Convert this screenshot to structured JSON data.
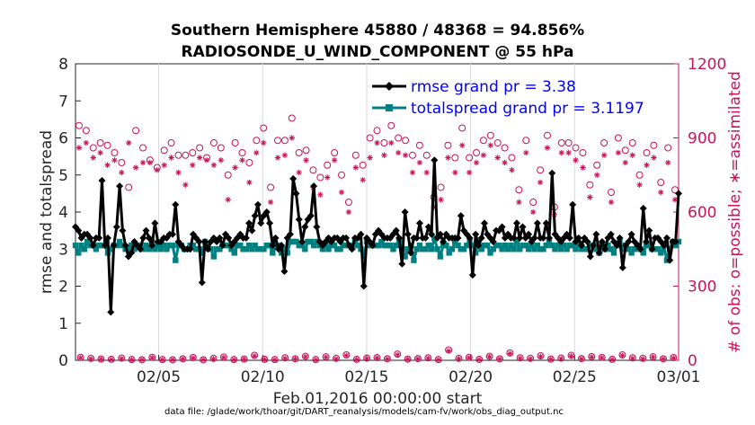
{
  "chart_data": {
    "type": "line",
    "title": "Southern Hemisphere 45880 / 48368 = 94.856%",
    "subtitle": "RADIOSONDE_U_WIND_COMPONENT @ 55 hPa",
    "xlabel": "Feb.01,2016 00:00:00 start",
    "ylabel": "rmse and totalspread",
    "ylabel_right": "# of obs: o=possible; ∗=assimilated",
    "footer": "data file: /glade/work/thoar/git/DART_reanalysis/models/cam-fv/work/obs_diag_output.nc",
    "x_ticks": [
      "02/05",
      "02/10",
      "02/15",
      "02/20",
      "02/25",
      "03/01"
    ],
    "y_ticks": [
      "0",
      "1",
      "2",
      "3",
      "4",
      "5",
      "6",
      "7",
      "8"
    ],
    "y2_ticks": [
      "0",
      "300",
      "600",
      "900",
      "1200"
    ],
    "xlim_days": [
      1,
      30
    ],
    "ylim": [
      0,
      8
    ],
    "y2lim": [
      0,
      1200
    ],
    "legend_position": "top-right",
    "colors": {
      "rmse": "#000000",
      "totalspread": "#008080",
      "obs": "#c8145a",
      "legend_text": "#0000ff"
    },
    "series": [
      {
        "name": "rmse grand pr = 3.38",
        "values": [
          3.6,
          3.5,
          3.3,
          3.4,
          3.4,
          3.3,
          3.1,
          3.3,
          3.3,
          4.85,
          3.1,
          3.3,
          1.3,
          3.1,
          3.6,
          4.7,
          3.5,
          3.1,
          2.8,
          2.9,
          3.2,
          3.1,
          3.0,
          3.3,
          3.5,
          3.3,
          3.1,
          3.7,
          3.2,
          3.2,
          3.3,
          3.3,
          3.4,
          3.4,
          4.2,
          3.2,
          3.1,
          3.0,
          3.0,
          3.0,
          3.4,
          3.3,
          3.2,
          2.1,
          3.2,
          3.0,
          3.2,
          3.3,
          3.2,
          3.3,
          3.1,
          3.4,
          3.3,
          3.1,
          3.2,
          3.3,
          3.4,
          3.3,
          3.3,
          3.7,
          3.5,
          3.9,
          4.2,
          3.7,
          3.9,
          4.0,
          3.7,
          3.1,
          3.3,
          3.0,
          3.1,
          2.4,
          3.3,
          3.4,
          4.9,
          4.5,
          3.8,
          3.2,
          3.6,
          3.8,
          3.9,
          4.7,
          3.6,
          3.2,
          3.1,
          3.2,
          3.3,
          3.2,
          3.3,
          3.3,
          3.2,
          3.3,
          3.3,
          3.1,
          3.0,
          3.3,
          3.3,
          3.4,
          2.0,
          3.3,
          3.2,
          3.1,
          3.4,
          3.5,
          3.4,
          3.3,
          3.3,
          3.3,
          3.4,
          3.5,
          3.3,
          2.6,
          4.0,
          3.4,
          2.9,
          3.3,
          3.3,
          3.7,
          3.3,
          3.3,
          3.6,
          3.4,
          5.4,
          3.3,
          3.4,
          3.2,
          3.4,
          3.3,
          3.3,
          3.3,
          3.3,
          3.9,
          3.5,
          3.4,
          3.3,
          2.3,
          3.4,
          3.1,
          3.3,
          3.7,
          3.4,
          3.3,
          3.2,
          3.5,
          3.5,
          3.6,
          3.3,
          3.4,
          3.3,
          3.3,
          3.7,
          3.3,
          3.6,
          3.3,
          3.4,
          3.2,
          3.3,
          3.7,
          3.3,
          3.3,
          3.7,
          3.3,
          5.05,
          3.4,
          3.3,
          3.2,
          3.3,
          3.4,
          3.3,
          4.2,
          3.2,
          3.3,
          3.1,
          3.3,
          3.2,
          2.8,
          3.1,
          3.4,
          2.9,
          3.2,
          3.0,
          3.3,
          3.4,
          3.2,
          3.1,
          3.3,
          2.5,
          3.1,
          3.2,
          3.4,
          3.2,
          3.1,
          3.0,
          4.1,
          3.2,
          3.5,
          3.0,
          3.3,
          3.3,
          3.2,
          3.1,
          3.3,
          2.7,
          3.2,
          3.2,
          4.5
        ]
      },
      {
        "name": "totalspread grand pr = 3.1197",
        "values": [
          3.1,
          2.9,
          3.1,
          3.0,
          3.2,
          3.1,
          3.1,
          3.0,
          3.1,
          3.1,
          3.1,
          2.9,
          3.0,
          3.1,
          3.1,
          3.2,
          3.1,
          3.0,
          3.0,
          3.1,
          3.0,
          3.1,
          3.1,
          3.0,
          3.1,
          3.0,
          3.2,
          3.0,
          3.1,
          3.0,
          3.1,
          3.0,
          3.1,
          3.1,
          2.7,
          3.1,
          3.1,
          3.0,
          3.0,
          3.1,
          3.1,
          3.0,
          3.0,
          2.9,
          3.2,
          3.1,
          3.0,
          2.8,
          3.0,
          3.0,
          3.1,
          3.1,
          3.1,
          3.0,
          2.9,
          3.1,
          3.1,
          3.0,
          3.0,
          3.1,
          3.0,
          3.1,
          3.0,
          3.0,
          3.0,
          3.1,
          3.1,
          2.9,
          3.1,
          3.1,
          2.9,
          3.0,
          2.9,
          3.2,
          3.2,
          3.2,
          3.1,
          3.1,
          3.0,
          3.2,
          3.2,
          3.1,
          3.2,
          3.1,
          3.0,
          3.1,
          3.0,
          3.1,
          3.1,
          3.0,
          3.0,
          3.1,
          3.1,
          3.1,
          3.1,
          3.2,
          3.1,
          3.0,
          2.8,
          3.2,
          3.1,
          3.1,
          3.1,
          3.1,
          3.2,
          3.1,
          3.1,
          3.1,
          3.0,
          3.1,
          3.2,
          3.0,
          2.8,
          3.0,
          3.1,
          2.7,
          3.0,
          3.1,
          3.0,
          3.0,
          3.1,
          3.0,
          3.3,
          3.0,
          2.8,
          3.1,
          3.1,
          2.9,
          3.0,
          3.2,
          3.1,
          3.0,
          3.0,
          3.1,
          3.2,
          3.1,
          2.9,
          3.2,
          3.0,
          3.1,
          3.1,
          2.9,
          3.0,
          3.1,
          3.1,
          3.0,
          3.1,
          3.0,
          3.1,
          3.0,
          3.2,
          3.0,
          3.1,
          3.1,
          3.0,
          3.1,
          3.0,
          3.1,
          3.0,
          3.0,
          3.1,
          3.2,
          3.1,
          3.0,
          3.1,
          3.0,
          3.1,
          3.0,
          3.1,
          3.1,
          3.0,
          3.1,
          3.0,
          3.0,
          3.0,
          3.1,
          3.1,
          3.0,
          2.9,
          3.1,
          3.0,
          3.1,
          3.0,
          2.9,
          3.1,
          3.2,
          3.0,
          3.1,
          3.0,
          2.9,
          3.0,
          3.1,
          3.0,
          2.9,
          3.1,
          3.1,
          3.0,
          3.0,
          3.0,
          2.9,
          3.1,
          2.7,
          3.0,
          3.2,
          3.1,
          3.2
        ]
      }
    ],
    "obs_possible": [
      12,
      8,
      5,
      4,
      9,
      3,
      2,
      12,
      3,
      2,
      6,
      11,
      2,
      8,
      13,
      3,
      5,
      20,
      4,
      3,
      10,
      6,
      16,
      3,
      14,
      8,
      22,
      4,
      9,
      11,
      6,
      25,
      5,
      7,
      10,
      3,
      42,
      8,
      12,
      4,
      16,
      6,
      30,
      10,
      8,
      18,
      5,
      9,
      20,
      7,
      15,
      12,
      4,
      22,
      10,
      8,
      14,
      6,
      11
    ],
    "obs_assimilated": [
      10,
      6,
      4,
      3,
      7,
      2,
      2,
      10,
      2,
      2,
      5,
      9,
      2,
      6,
      11,
      2,
      4,
      17,
      3,
      2,
      8,
      5,
      14,
      2,
      12,
      6,
      19,
      3,
      7,
      9,
      5,
      22,
      4,
      6,
      8,
      2,
      38,
      6,
      10,
      3,
      14,
      5,
      27,
      8,
      6,
      15,
      4,
      7,
      17,
      6,
      13,
      10,
      3,
      19,
      8,
      6,
      12,
      5,
      9
    ],
    "obs_possible_high": [
      950,
      930,
      860,
      880,
      870,
      840,
      800,
      700,
      930,
      860,
      810,
      780,
      850,
      880,
      830,
      830,
      840,
      860,
      820,
      880,
      860,
      750,
      880,
      840,
      800,
      890,
      940,
      700,
      890,
      890,
      980,
      840,
      850,
      770,
      740,
      790,
      840,
      750,
      640,
      830,
      790,
      900,
      930,
      880,
      950,
      900,
      890,
      830,
      870,
      830,
      660,
      700,
      870,
      820,
      940,
      820,
      840,
      890,
      910,
      880,
      860,
      820,
      690,
      890,
      640,
      770,
      910,
      620,
      880,
      880,
      860,
      840,
      710,
      790,
      880,
      680,
      900,
      850,
      880,
      750,
      840,
      870,
      720,
      860,
      690
    ],
    "obs_assimilated_high": [
      860,
      880,
      820,
      840,
      790,
      810,
      760,
      880,
      780,
      800,
      800,
      770,
      790,
      820,
      760,
      710,
      790,
      820,
      810,
      790,
      810,
      650,
      780,
      810,
      720,
      840,
      880,
      640,
      820,
      830,
      900,
      760,
      810,
      700,
      670,
      740,
      810,
      680,
      600,
      780,
      730,
      820,
      880,
      830,
      880,
      840,
      830,
      760,
      800,
      760,
      620,
      650,
      820,
      760,
      870,
      760,
      800,
      830,
      870,
      820,
      800,
      770,
      640,
      840,
      600,
      720,
      860,
      590,
      840,
      840,
      810,
      780,
      660,
      750,
      830,
      640,
      840,
      800,
      830,
      710,
      790,
      820,
      680,
      800,
      650
    ]
  }
}
